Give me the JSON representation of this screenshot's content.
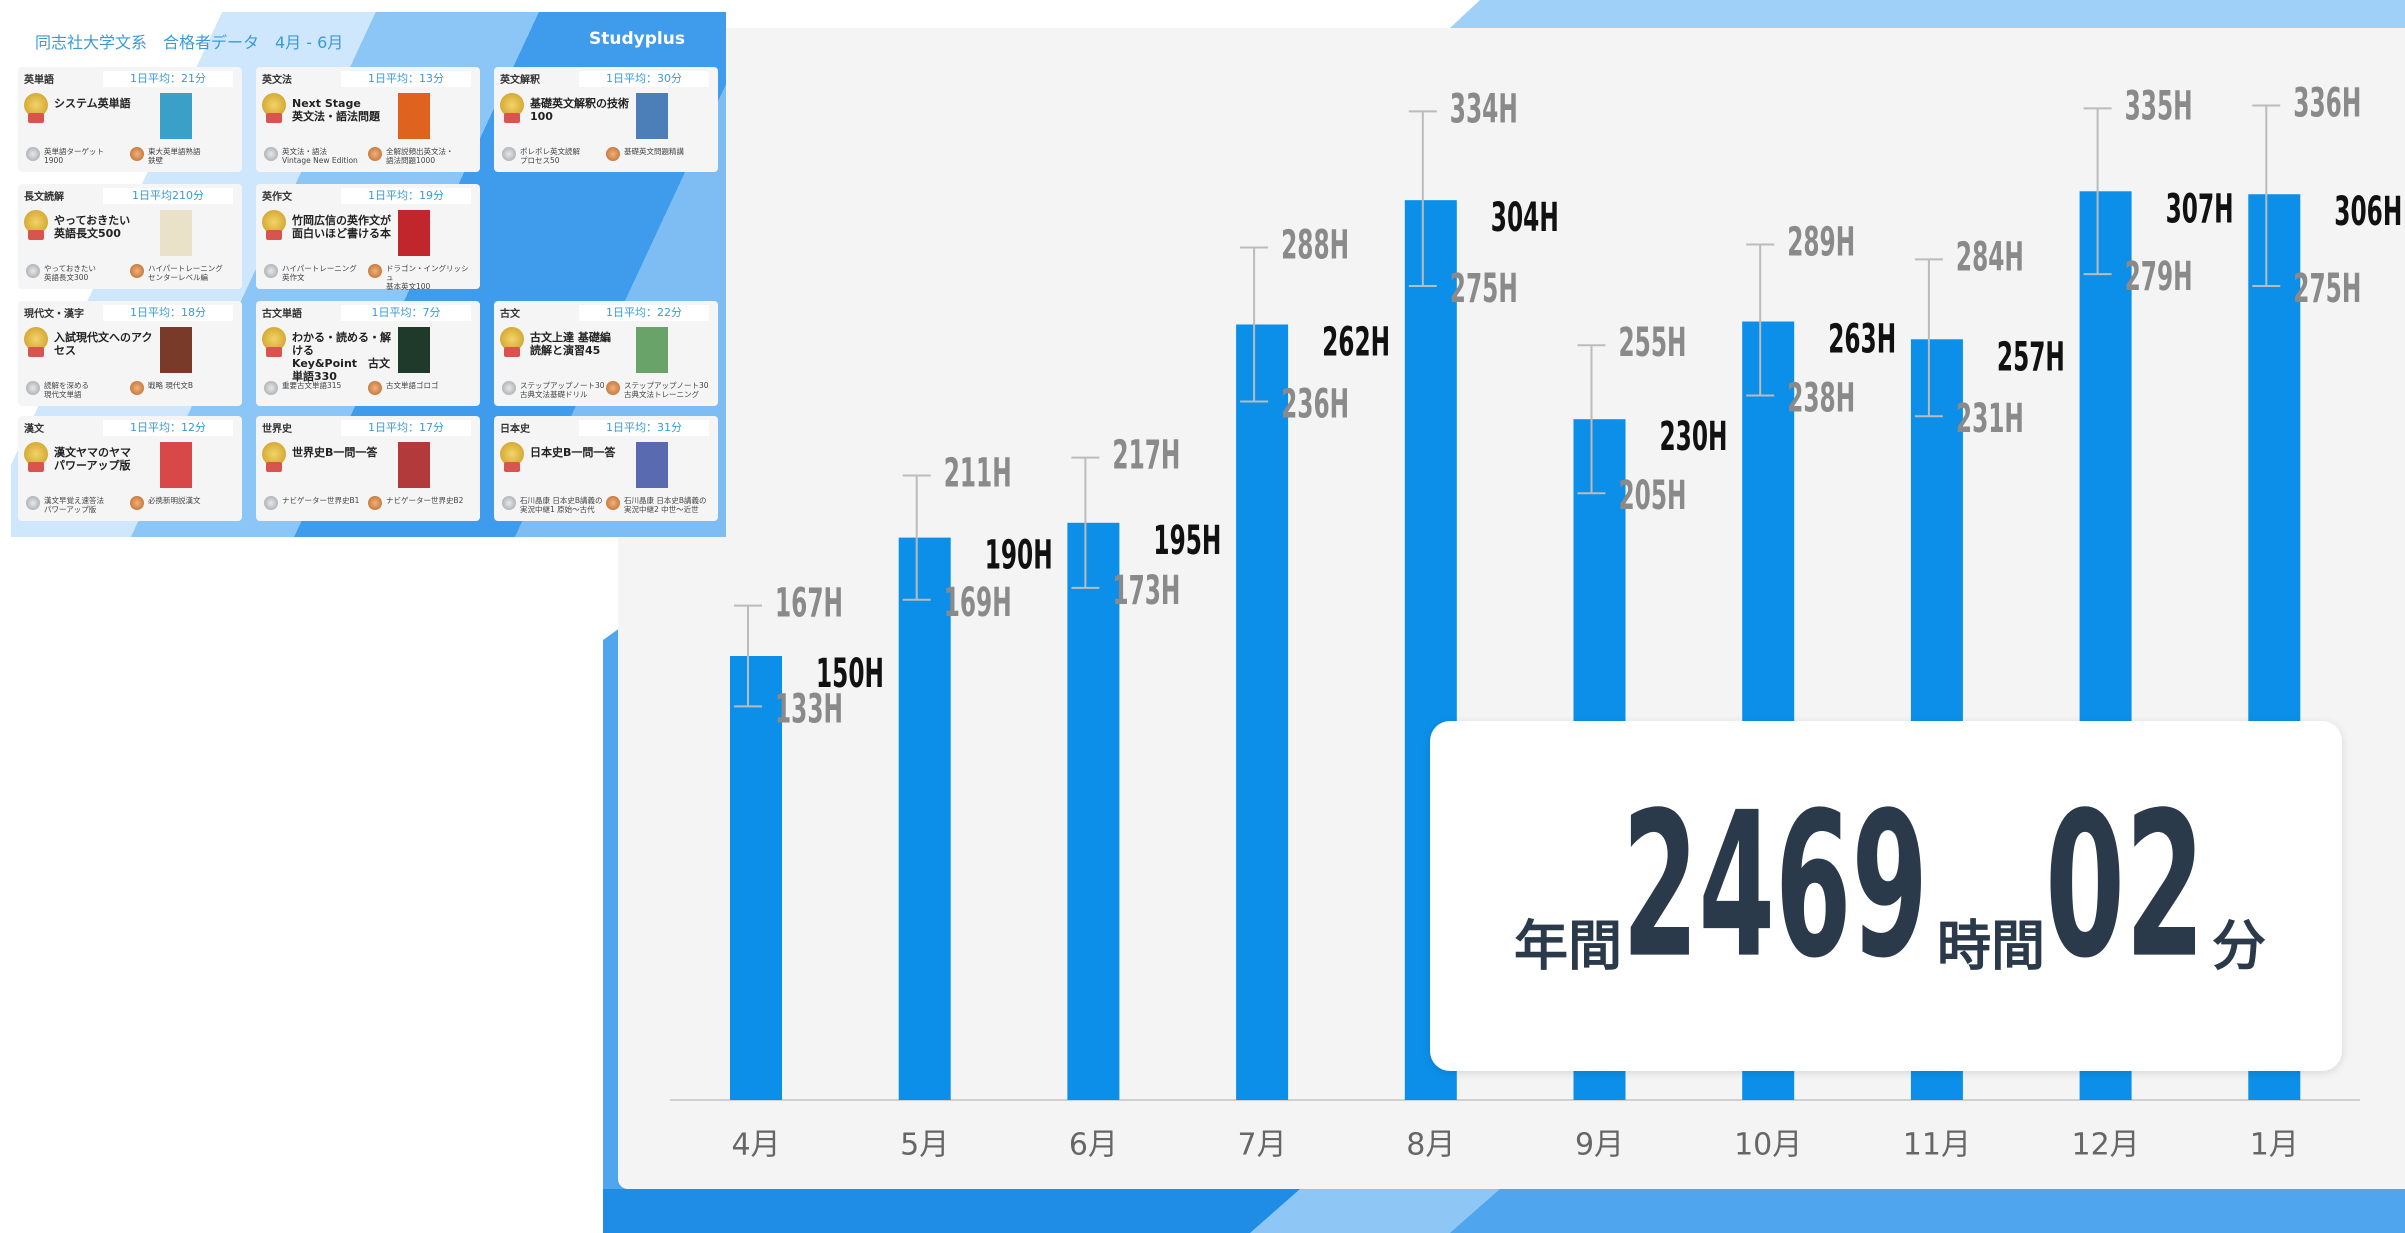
{
  "chart_data": {
    "type": "bar",
    "categories": [
      "4月",
      "5月",
      "6月",
      "7月",
      "8月",
      "9月",
      "10月",
      "11月",
      "12月",
      "1月"
    ],
    "values": [
      150,
      190,
      195,
      262,
      304,
      230,
      263,
      257,
      307,
      306
    ],
    "value_labels": [
      "150H",
      "190H",
      "195H",
      "262H",
      "304H",
      "230H",
      "263H",
      "257H",
      "307H",
      "306H"
    ],
    "upper": [
      167,
      211,
      217,
      288,
      334,
      255,
      289,
      284,
      335,
      336
    ],
    "upper_labels": [
      "167H",
      "211H",
      "217H",
      "288H",
      "334H",
      "255H",
      "289H",
      "284H",
      "335H",
      "336H"
    ],
    "lower": [
      133,
      169,
      173,
      236,
      275,
      205,
      238,
      231,
      279,
      275
    ],
    "lower_labels": [
      "133H",
      "169H",
      "173H",
      "236H",
      "275H",
      "205H",
      "238H",
      "231H",
      "279H",
      "275H"
    ],
    "color": "#0b8fe8",
    "ylim": [
      0,
      350
    ]
  },
  "total": {
    "prefix": "年間",
    "hours": "2469",
    "hours_unit": "時間",
    "minutes": "02",
    "minutes_unit": "分"
  },
  "panel": {
    "title": "同志社大学文系　合格者データ　4月 - 6月",
    "logo": "Studyplus",
    "cards": [
      {
        "category": "英単語",
        "average": "1日平均：21分",
        "first": "システム英単語",
        "second": "英単語ターゲット\n1900",
        "third": "東大英単語熟語\n鉄壁"
      },
      {
        "category": "英文法",
        "average": "1日平均：13分",
        "first": "Next Stage\n英文法・語法問題",
        "second": "英文法・語法\nVintage New Edition",
        "third": "全解説頻出英文法・\n語法問題1000"
      },
      {
        "category": "英文解釈",
        "average": "1日平均：30分",
        "first": "基礎英文解釈の技術100",
        "second": "ポレポレ英文読解\nプロセス50",
        "third": "基礎英文問題精講"
      },
      {
        "category": "長文読解",
        "average": "1日平均210分",
        "first": "やっておきたい\n英語長文500",
        "second": "やっておきたい\n英語長文300",
        "third": "ハイパートレーニング\nセンターレベル編"
      },
      {
        "category": "英作文",
        "average": "1日平均：19分",
        "first": "竹岡広信の英作文が\n面白いほど書ける本",
        "second": "ハイパートレーニング\n英作文",
        "third": "ドラゴン・イングリッシュ\n基本英文100"
      },
      {
        "category": "現代文・漢字",
        "average": "1日平均：18分",
        "first": "入試現代文へのアクセス",
        "second": "読解を深める\n現代文単語",
        "third": "戦略 現代文B"
      },
      {
        "category": "古文単語",
        "average": "1日平均：7分",
        "first": "わかる・読める・解ける\nKey&Point　古文単語330",
        "second": "重要古文単語315",
        "third": "古文単語ゴロゴ"
      },
      {
        "category": "古文",
        "average": "1日平均：22分",
        "first": "古文上達 基礎編\n読解と演習45",
        "second": "ステップアップノート30\n古典文法基礎ドリル",
        "third": "ステップアップノート30\n古典文法トレーニング"
      },
      {
        "category": "漢文",
        "average": "1日平均：12分",
        "first": "漢文ヤマのヤマ\nパワーアップ版",
        "second": "漢文早覚え速答法\nパワーアップ版",
        "third": "必携新明説漢文"
      },
      {
        "category": "世界史",
        "average": "1日平均：17分",
        "first": "世界史B一問一答",
        "second": "ナビゲーター世界史B1",
        "third": "ナビゲーター世界史B2"
      },
      {
        "category": "日本史",
        "average": "1日平均：31分",
        "first": "日本史B一問一答",
        "second": "石川晶康 日本史B講義の\n実況中継1 原始～古代",
        "third": "石川晶康 日本史B講義の\n実況中継2 中世～近世"
      }
    ]
  }
}
